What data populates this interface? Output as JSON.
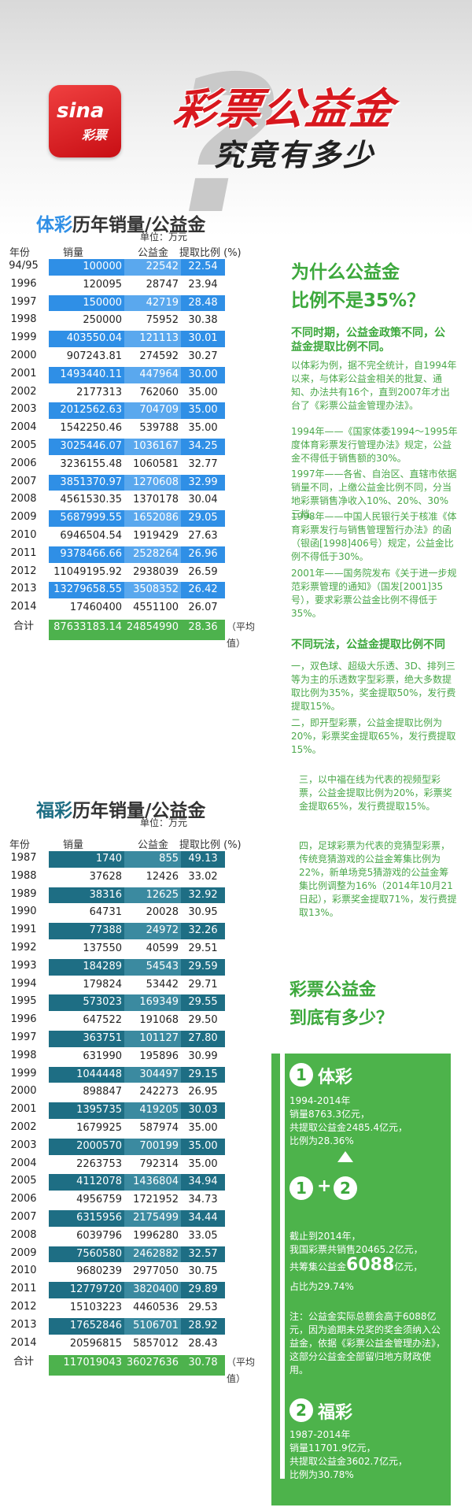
{
  "header": {
    "logo_text": "sina",
    "logo_sub": "彩票",
    "title": "彩票公益金",
    "subtitle": "究竟有多少",
    "qmark": "?"
  },
  "ticai": {
    "title_hl": "体彩",
    "title_rest": "历年销量/公益金",
    "unit": "单位：万元",
    "headers": [
      "年份",
      "销量",
      "公益金",
      "提取比例 (%)"
    ],
    "rows": [
      {
        "year": "94/95",
        "sales": "100000",
        "fund": "22542",
        "ratio": "22.54",
        "hl": true
      },
      {
        "year": "1996",
        "sales": "120095",
        "fund": "28747",
        "ratio": "23.94",
        "hl": false
      },
      {
        "year": "1997",
        "sales": "150000",
        "fund": "42719",
        "ratio": "28.48",
        "hl": true
      },
      {
        "year": "1998",
        "sales": "250000",
        "fund": "75952",
        "ratio": "30.38",
        "hl": false
      },
      {
        "year": "1999",
        "sales": "403550.04",
        "fund": "121113",
        "ratio": "30.01",
        "hl": true
      },
      {
        "year": "2000",
        "sales": "907243.81",
        "fund": "274592",
        "ratio": "30.27",
        "hl": false
      },
      {
        "year": "2001",
        "sales": "1493440.11",
        "fund": "447964",
        "ratio": "30.00",
        "hl": true
      },
      {
        "year": "2002",
        "sales": "2177313",
        "fund": "762060",
        "ratio": "35.00",
        "hl": false
      },
      {
        "year": "2003",
        "sales": "2012562.63",
        "fund": "704709",
        "ratio": "35.00",
        "hl": true
      },
      {
        "year": "2004",
        "sales": "1542250.46",
        "fund": "539788",
        "ratio": "35.00",
        "hl": false
      },
      {
        "year": "2005",
        "sales": "3025446.07",
        "fund": "1036167",
        "ratio": "34.25",
        "hl": true
      },
      {
        "year": "2006",
        "sales": "3236155.48",
        "fund": "1060581",
        "ratio": "32.77",
        "hl": false
      },
      {
        "year": "2007",
        "sales": "3851370.97",
        "fund": "1270608",
        "ratio": "32.99",
        "hl": true
      },
      {
        "year": "2008",
        "sales": "4561530.35",
        "fund": "1370178",
        "ratio": "30.04",
        "hl": false
      },
      {
        "year": "2009",
        "sales": "5687999.55",
        "fund": "1652086",
        "ratio": "29.05",
        "hl": true
      },
      {
        "year": "2010",
        "sales": "6946504.54",
        "fund": "1919429",
        "ratio": "27.63",
        "hl": false
      },
      {
        "year": "2011",
        "sales": "9378466.66",
        "fund": "2528264",
        "ratio": "26.96",
        "hl": true
      },
      {
        "year": "2012",
        "sales": "11049195.92",
        "fund": "2938039",
        "ratio": "26.59",
        "hl": false
      },
      {
        "year": "2013",
        "sales": "13279658.55",
        "fund": "3508352",
        "ratio": "26.42",
        "hl": true
      },
      {
        "year": "2014",
        "sales": "17460400",
        "fund": "4551100",
        "ratio": "26.07",
        "hl": false
      }
    ],
    "total": {
      "label": "合计",
      "sales": "87633183.14",
      "fund": "24854990",
      "ratio": "28.36",
      "avg": "（平均值）"
    }
  },
  "fucai": {
    "title_hl": "福彩",
    "title_rest": "历年销量/公益金",
    "unit": "单位：万元",
    "headers": [
      "年份",
      "销量",
      "公益金",
      "提取比例 (%)"
    ],
    "rows": [
      {
        "year": "1987",
        "sales": "1740",
        "fund": "855",
        "ratio": "49.13",
        "hl": true
      },
      {
        "year": "1988",
        "sales": "37628",
        "fund": "12426",
        "ratio": "33.02",
        "hl": false
      },
      {
        "year": "1989",
        "sales": "38316",
        "fund": "12625",
        "ratio": "32.92",
        "hl": true
      },
      {
        "year": "1990",
        "sales": "64731",
        "fund": "20028",
        "ratio": "30.95",
        "hl": false
      },
      {
        "year": "1991",
        "sales": "77388",
        "fund": "24972",
        "ratio": "32.26",
        "hl": true
      },
      {
        "year": "1992",
        "sales": "137550",
        "fund": "40599",
        "ratio": "29.51",
        "hl": false
      },
      {
        "year": "1993",
        "sales": "184289",
        "fund": "54543",
        "ratio": "29.59",
        "hl": true
      },
      {
        "year": "1994",
        "sales": "179824",
        "fund": "53442",
        "ratio": "29.71",
        "hl": false
      },
      {
        "year": "1995",
        "sales": "573023",
        "fund": "169349",
        "ratio": "29.55",
        "hl": true
      },
      {
        "year": "1996",
        "sales": "647522",
        "fund": "191068",
        "ratio": "29.50",
        "hl": false
      },
      {
        "year": "1997",
        "sales": "363751",
        "fund": "101127",
        "ratio": "27.80",
        "hl": true
      },
      {
        "year": "1998",
        "sales": "631990",
        "fund": "195896",
        "ratio": "30.99",
        "hl": false
      },
      {
        "year": "1999",
        "sales": "1044448",
        "fund": "304497",
        "ratio": "29.15",
        "hl": true
      },
      {
        "year": "2000",
        "sales": "898847",
        "fund": "242273",
        "ratio": "26.95",
        "hl": false
      },
      {
        "year": "2001",
        "sales": "1395735",
        "fund": "419205",
        "ratio": "30.03",
        "hl": true
      },
      {
        "year": "2002",
        "sales": "1679925",
        "fund": "587974",
        "ratio": "35.00",
        "hl": false
      },
      {
        "year": "2003",
        "sales": "2000570",
        "fund": "700199",
        "ratio": "35.00",
        "hl": true
      },
      {
        "year": "2004",
        "sales": "2263753",
        "fund": "792314",
        "ratio": "35.00",
        "hl": false
      },
      {
        "year": "2005",
        "sales": "4112078",
        "fund": "1436804",
        "ratio": "34.94",
        "hl": true
      },
      {
        "year": "2006",
        "sales": "4956759",
        "fund": "1721952",
        "ratio": "34.73",
        "hl": false
      },
      {
        "year": "2007",
        "sales": "6315956",
        "fund": "2175499",
        "ratio": "34.44",
        "hl": true
      },
      {
        "year": "2008",
        "sales": "6039796",
        "fund": "1996280",
        "ratio": "33.05",
        "hl": false
      },
      {
        "year": "2009",
        "sales": "7560580",
        "fund": "2462882",
        "ratio": "32.57",
        "hl": true
      },
      {
        "year": "2010",
        "sales": "9680239",
        "fund": "2977050",
        "ratio": "30.75",
        "hl": false
      },
      {
        "year": "2011",
        "sales": "12779720",
        "fund": "3820400",
        "ratio": "29.89",
        "hl": true
      },
      {
        "year": "2012",
        "sales": "15103223",
        "fund": "4460536",
        "ratio": "29.53",
        "hl": false
      },
      {
        "year": "2013",
        "sales": "17652846",
        "fund": "5106701",
        "ratio": "28.92",
        "hl": true
      },
      {
        "year": "2014",
        "sales": "20596815",
        "fund": "5857012",
        "ratio": "28.43",
        "hl": false
      }
    ],
    "total": {
      "label": "合计",
      "sales": "117019043",
      "fund": "36027636",
      "ratio": "30.78",
      "avg": "（平均值）"
    }
  },
  "why": {
    "title_line1": "为什么公益金",
    "title_line2": "比例不是35%？",
    "h1": "不同时期，公益金政策不同，公益金提取比例不同。",
    "p1": "以体彩为例，据不完全统计，自1994年以来，与体彩公益金相关的批复、通知、办法共有16个，直到2007年才出台了《彩票公益金管理办法》。",
    "p2": "1994年——《国家体委1994～1995年度体育彩票发行管理办法》规定，公益金不得低于销售额的30%。",
    "p3": "1997年——各省、自治区、直辖市依据销量不同，上缴公益金比例不同，分当地彩票销售净收入10%、20%、30%三档。",
    "p4": "1998年——中国人民银行关于核准《体育彩票发行与销售管理暂行办法》的函（银函[1998]406号）规定，公益金比例不得低于30%。",
    "p5": "2001年——国务院发布《关于进一步规范彩票管理的通知》（国发[2001]35号），要求彩票公益金比例不得低于35%。",
    "h2": "不同玩法，公益金提取比例不同",
    "p6": "一，双色球、超级大乐透、3D、排列三等为主的乐透数字型彩票，绝大多数提取比例为35%，奖金提取50%，发行费提取15%。",
    "p7": "二，即开型彩票，公益金提取比例为20%，彩票奖金提取65%，发行费提取15%。",
    "p8": "三，以中福在线为代表的视频型彩票，公益金提取比例为20%，彩票奖金提取65%，发行费提取15%。",
    "p9": "四，足球彩票为代表的竞猜型彩票，传统竞猜游戏的公益金筹集比例为22%，新单场竞5猜游戏的公益金筹集比例调整为16%（2014年10月21日起），彩票奖金提取71%，发行费提取13%。"
  },
  "how": {
    "title_line1": "彩票公益金",
    "title_line2": "到底有多少？",
    "n1": "1",
    "n2": "2",
    "plus": "+",
    "label1": "体彩",
    "t1": "1994-2014年\n销量8763.3亿元，\n共提取公益金2485.4亿元，\n比例为28.36%",
    "t2a": "截止到2014年，\n我国彩票共销售20465.2亿元，",
    "t2b_pre": "共筹集公益金",
    "t2b_big": "6088",
    "t2b_post": "亿元，",
    "t2c": "占比为29.74%",
    "t3": "注：公益金实际总额会高于6088亿元，因为逾期未兑奖的奖金须纳入公益金，依据《彩票公益金管理办法》，这部分公益金全部留归地方财政使用。",
    "label2": "福彩",
    "t4": "1987-2014年\n销量11701.9亿元，\n共提取公益金3602.7亿元，\n比例为30.78%"
  },
  "colors": {
    "ticai": "#2f8fe6",
    "fucai": "#1e6e84",
    "green": "#4db34b",
    "red": "#d8181e"
  }
}
